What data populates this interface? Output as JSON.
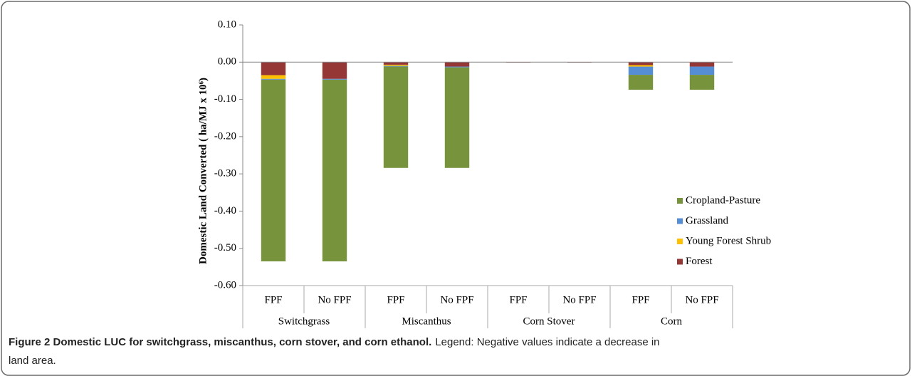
{
  "chart_data": {
    "type": "stacked_bar",
    "ylabel": "Domestic Land Converted ( ha/MJ x 10⁶)",
    "categories": [
      "FPF",
      "No FPF",
      "FPF",
      "No FPF",
      "FPF",
      "No FPF",
      "FPF",
      "No FPF"
    ],
    "groups": [
      "Switchgrass",
      "Miscanthus",
      "Corn Stover",
      "Corn"
    ],
    "series": [
      {
        "name": "Forest",
        "color": "#953735",
        "values": [
          -0.035,
          -0.045,
          -0.007,
          -0.012,
          -0.001,
          -0.001,
          -0.008,
          -0.012
        ]
      },
      {
        "name": "Young Forest Shrub",
        "color": "#ffc000",
        "values": [
          -0.01,
          0,
          -0.003,
          0,
          0,
          0,
          -0.004,
          0
        ]
      },
      {
        "name": "Grassland",
        "color": "#558ed5",
        "values": [
          -0.002,
          -0.002,
          -0.002,
          -0.002,
          0,
          0,
          -0.022,
          -0.022
        ]
      },
      {
        "name": "Cropland-Pasture",
        "color": "#77933c",
        "values": [
          -0.488,
          -0.488,
          -0.272,
          -0.27,
          0,
          0,
          -0.04,
          -0.04
        ]
      }
    ],
    "ylim": [
      -0.6,
      0.1
    ],
    "yticks": [
      {
        "value": 0.1,
        "label": "0.10"
      },
      {
        "value": 0,
        "label": "0.00"
      },
      {
        "value": -0.1,
        "label": "-0.10"
      },
      {
        "value": -0.2,
        "label": "-0.20"
      },
      {
        "value": -0.3,
        "label": "-0.30"
      },
      {
        "value": -0.4,
        "label": "-0.40"
      },
      {
        "value": -0.5,
        "label": "-0.50"
      },
      {
        "value": -0.6,
        "label": "-0.60"
      }
    ],
    "legend": "lower right"
  },
  "caption": {
    "title": "Figure 2 Domestic LUC for switchgrass, miscanthus, corn stover, and corn ethanol.",
    "text_1": "Legend: Negative values indicate a decrease in",
    "text_2": "land area."
  }
}
